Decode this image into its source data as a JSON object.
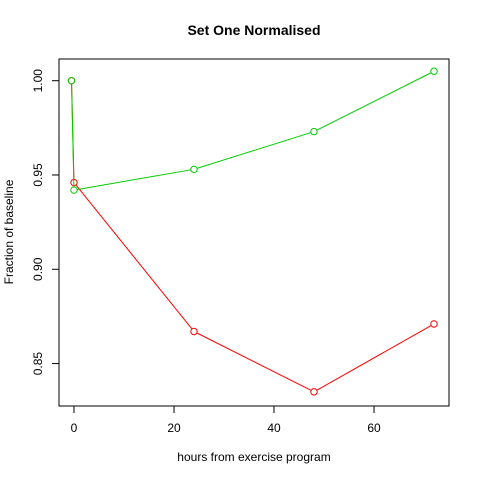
{
  "chart_data": {
    "type": "line",
    "title": "Set One Normalised",
    "xlabel": "hours from exercise program",
    "ylabel": "Fraction of baseline",
    "xlim": [
      -3.0,
      75.0
    ],
    "ylim": [
      0.8275,
      1.0115
    ],
    "x_ticks": [
      0,
      20,
      40,
      60
    ],
    "y_ticks": [
      0.85,
      0.9,
      0.95,
      1.0
    ],
    "x_tick_labels": [
      "0",
      "20",
      "40",
      "60"
    ],
    "y_tick_labels": [
      "0.85",
      "0.90",
      "0.95",
      "1.00"
    ],
    "grid": false,
    "legend": false,
    "series": [
      {
        "color": "#ff0000",
        "x": [
          -0.5,
          0,
          24,
          48,
          72
        ],
        "y": [
          1.0,
          0.946,
          0.867,
          0.835,
          0.871
        ]
      },
      {
        "color": "#00cc00",
        "x": [
          -0.5,
          0,
          24,
          48,
          72
        ],
        "y": [
          1.0,
          0.942,
          0.953,
          0.973,
          1.005
        ]
      }
    ]
  }
}
